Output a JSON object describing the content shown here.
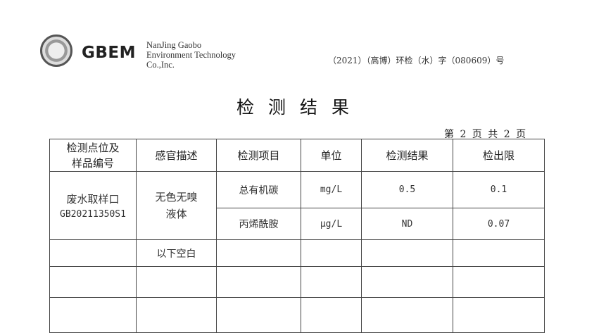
{
  "header": {
    "brand": "GBEM",
    "company_lines": [
      "NanJing Gaobo",
      "Environment Technology",
      "Co.,Inc."
    ],
    "report_no": "（2021）（高博）环检（水）字（080609）号"
  },
  "title": "检测结果",
  "page_info": "第 2 页 共 2 页",
  "table": {
    "headers": [
      "检测点位及\n样品编号",
      "感官描述",
      "检测项目",
      "单位",
      "检测结果",
      "检出限"
    ],
    "sample": {
      "point": "废水取样口",
      "id": "GB20211350S1",
      "description_1": "无色无嗅",
      "description_2": "液体"
    },
    "rows": [
      {
        "item": "总有机碳",
        "unit": "mg/L",
        "result": "0.5",
        "limit": "0.1"
      },
      {
        "item": "丙烯酰胺",
        "unit": "μg/L",
        "result": "ND",
        "limit": "0.07"
      }
    ],
    "blank_note": "以下空白"
  }
}
